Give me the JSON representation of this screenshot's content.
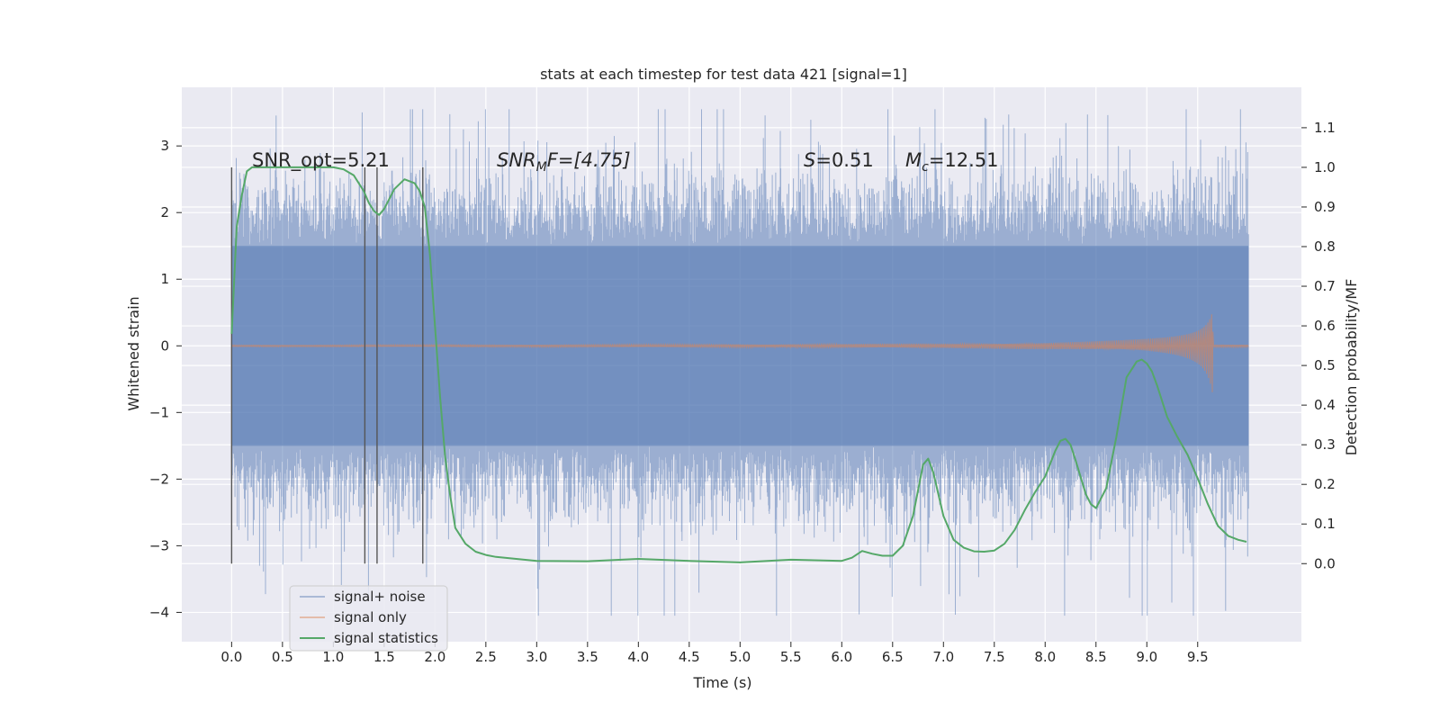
{
  "chart_data": {
    "type": "line",
    "title": "stats at each timestep for test data 421 [signal=1]",
    "xlabel": "Time (s)",
    "ylabel": "Whitened strain",
    "y2label": "Detection probability/MF",
    "xlim": [
      -0.49,
      10.52
    ],
    "ylim": [
      -4.44,
      3.88
    ],
    "y2lim": [
      -0.197,
      1.202
    ],
    "xticks": [
      "0.0",
      "0.5",
      "1.0",
      "1.5",
      "2.0",
      "2.5",
      "3.0",
      "3.5",
      "4.0",
      "4.5",
      "5.0",
      "5.5",
      "6.0",
      "6.5",
      "7.0",
      "7.5",
      "8.0",
      "8.5",
      "9.0",
      "9.5"
    ],
    "yticks": [
      "−4",
      "−3",
      "−2",
      "−1",
      "0",
      "1",
      "2",
      "3"
    ],
    "y2ticks": [
      "0.0",
      "0.1",
      "0.2",
      "0.3",
      "0.4",
      "0.5",
      "0.6",
      "0.7",
      "0.8",
      "0.9",
      "1.0",
      "1.1"
    ],
    "grid": true,
    "legend_position": "lower-left",
    "colors": {
      "background": "#eaeaf2",
      "grid": "#ffffff",
      "noise": "#4c72b0",
      "signal": "#dd8452",
      "statistics": "#55a868",
      "vlines": "#555555"
    },
    "annotations": {
      "snr_opt": "SNR_opt=5.21",
      "snr_mf_main": "SNR",
      "snr_mf_sub": "M",
      "snr_mf_rest": "F=[4.75]",
      "s_main": "S",
      "s_rest": "=0.51",
      "mc_main": "M",
      "mc_sub": "c",
      "mc_rest": "=12.51"
    },
    "vertical_lines_x": [
      0.0,
      1.31,
      1.43,
      1.88
    ],
    "series": [
      {
        "name": "signal+ noise",
        "axis": "left",
        "description_points": "dense noise, |y| mostly < 1.5, spikes to +3.5 / -4.1",
        "x_range": [
          0.0,
          10.0
        ],
        "envelope": {
          "core_low": -1.5,
          "core_high": 1.5,
          "max": 3.55,
          "min": -4.05
        }
      },
      {
        "name": "signal only",
        "axis": "left",
        "chirp": {
          "start_x": 0.0,
          "end_x": 9.65,
          "peak_amplitude": 0.78,
          "tail_end_x": 10.0
        }
      },
      {
        "name": "signal statistics",
        "axis": "right",
        "x": [
          0.0,
          0.05,
          0.1,
          0.15,
          0.2,
          0.3,
          0.5,
          0.8,
          1.0,
          1.1,
          1.2,
          1.3,
          1.35,
          1.4,
          1.45,
          1.5,
          1.55,
          1.6,
          1.7,
          1.8,
          1.85,
          1.9,
          1.95,
          2.0,
          2.05,
          2.1,
          2.15,
          2.2,
          2.3,
          2.4,
          2.5,
          2.6,
          3.0,
          3.5,
          4.0,
          4.5,
          5.0,
          5.5,
          6.0,
          6.1,
          6.2,
          6.3,
          6.4,
          6.5,
          6.6,
          6.7,
          6.8,
          6.85,
          6.9,
          7.0,
          7.1,
          7.2,
          7.3,
          7.4,
          7.5,
          7.6,
          7.7,
          7.8,
          7.9,
          8.0,
          8.1,
          8.15,
          8.2,
          8.25,
          8.3,
          8.4,
          8.45,
          8.5,
          8.6,
          8.7,
          8.8,
          8.9,
          8.95,
          9.0,
          9.05,
          9.1,
          9.2,
          9.3,
          9.4,
          9.5,
          9.6,
          9.7,
          9.8,
          9.9,
          9.98
        ],
        "values": [
          0.58,
          0.85,
          0.93,
          0.99,
          1.0,
          1.0,
          1.0,
          1.0,
          1.0,
          0.995,
          0.98,
          0.94,
          0.91,
          0.89,
          0.88,
          0.895,
          0.92,
          0.945,
          0.97,
          0.96,
          0.94,
          0.9,
          0.78,
          0.6,
          0.42,
          0.27,
          0.17,
          0.09,
          0.05,
          0.03,
          0.022,
          0.017,
          0.007,
          0.006,
          0.012,
          0.007,
          0.003,
          0.01,
          0.007,
          0.015,
          0.032,
          0.025,
          0.02,
          0.02,
          0.045,
          0.12,
          0.25,
          0.265,
          0.23,
          0.12,
          0.06,
          0.04,
          0.031,
          0.03,
          0.033,
          0.05,
          0.085,
          0.135,
          0.18,
          0.22,
          0.285,
          0.31,
          0.315,
          0.3,
          0.26,
          0.175,
          0.15,
          0.14,
          0.19,
          0.32,
          0.47,
          0.51,
          0.515,
          0.505,
          0.485,
          0.45,
          0.37,
          0.32,
          0.275,
          0.215,
          0.15,
          0.095,
          0.07,
          0.06,
          0.055
        ]
      }
    ]
  }
}
